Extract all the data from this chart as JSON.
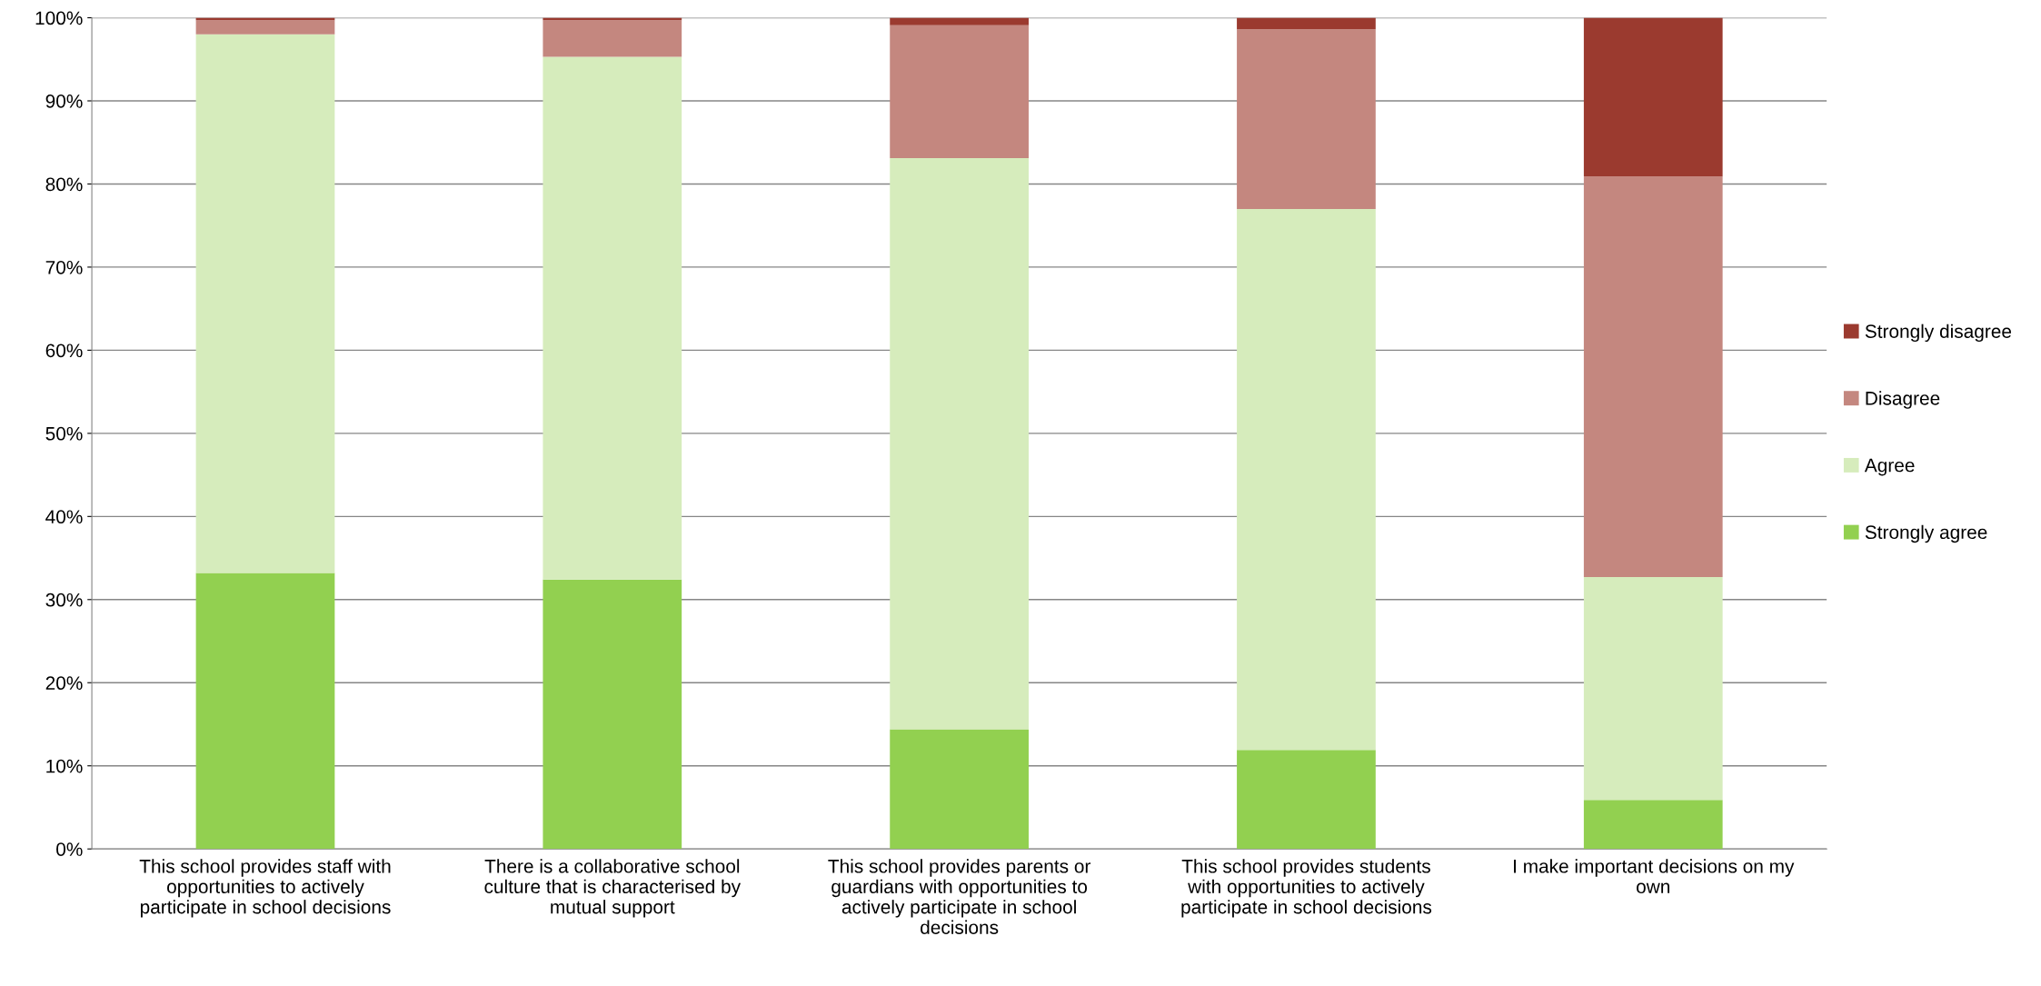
{
  "chart_data": {
    "type": "bar",
    "stacked": true,
    "categories": [
      "This school provides staff with opportunities to actively participate in school decisions",
      "There is a collaborative school culture that is characterised by mutual support",
      "This school provides parents or guardians with opportunities to actively participate in school decisions",
      "This school provides students with opportunities to actively participate in school decisions",
      "I make important decisions on my own"
    ],
    "series": [
      {
        "name": "Strongly agree",
        "color": "#92d050",
        "values": [
          33.2,
          32.4,
          14.4,
          11.9,
          5.9
        ]
      },
      {
        "name": "Agree",
        "color": "#d6ecbc",
        "values": [
          64.8,
          62.9,
          68.7,
          65.1,
          26.8
        ]
      },
      {
        "name": "Disagree",
        "color": "#c4877f",
        "values": [
          1.7,
          4.4,
          16.0,
          21.6,
          48.2
        ]
      },
      {
        "name": "Strongly disagree",
        "color": "#9b3a2f",
        "values": [
          0.3,
          0.3,
          0.9,
          1.4,
          19.1
        ]
      }
    ],
    "ylim": [
      0,
      100
    ],
    "yticks": [
      {
        "value": 0,
        "label": "0%"
      },
      {
        "value": 10,
        "label": "10%"
      },
      {
        "value": 20,
        "label": "20%"
      },
      {
        "value": 30,
        "label": "30%"
      },
      {
        "value": 40,
        "label": "40%"
      },
      {
        "value": 50,
        "label": "50%"
      },
      {
        "value": 60,
        "label": "60%"
      },
      {
        "value": 70,
        "label": "70%"
      },
      {
        "value": 80,
        "label": "80%"
      },
      {
        "value": 90,
        "label": "90%"
      },
      {
        "value": 100,
        "label": "100%"
      }
    ],
    "grid": "y",
    "legend": "right"
  }
}
